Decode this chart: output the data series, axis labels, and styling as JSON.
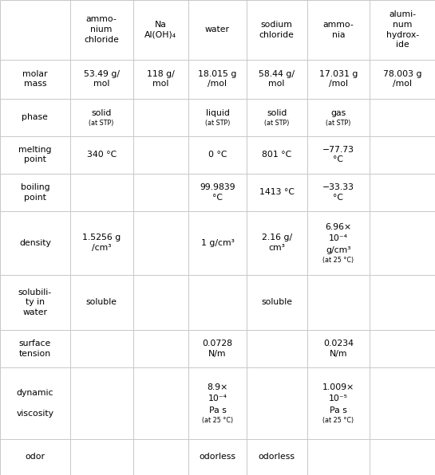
{
  "col_headers": [
    "",
    "ammo-\nnium\nchloride",
    "Na\nAl(OH)₄",
    "water",
    "sodium\nchloride",
    "ammo-\nnia",
    "alumi-\nnum\nhydrox-\nide"
  ],
  "rows": [
    {
      "label": "molar\nmass",
      "cells": [
        "53.49 g/\nmol",
        "118 g/\nmol",
        "18.015 g\n/mol",
        "58.44 g/\nmol",
        "17.031 g\n/mol",
        "78.003 g\n/mol"
      ]
    },
    {
      "label": "phase",
      "cells": [
        "solid\n(at STP)",
        "",
        "liquid\n(at STP)",
        "solid\n(at STP)",
        "gas\n(at STP)",
        ""
      ]
    },
    {
      "label": "melting\npoint",
      "cells": [
        "340 °C",
        "",
        "0 °C",
        "801 °C",
        "−77.73\n°C",
        ""
      ]
    },
    {
      "label": "boiling\npoint",
      "cells": [
        "",
        "",
        "99.9839\n°C",
        "1413 °C",
        "−33.33\n°C",
        ""
      ]
    },
    {
      "label": "density",
      "cells": [
        "1.5256 g\n/cm³",
        "",
        "1 g/cm³",
        "2.16 g/\ncm³",
        "6.96×\n10⁻⁴\ng/cm³\n(at 25 °C)",
        ""
      ]
    },
    {
      "label": "solubili-\nty in\nwater",
      "cells": [
        "soluble",
        "",
        "",
        "soluble",
        "",
        ""
      ]
    },
    {
      "label": "surface\ntension",
      "cells": [
        "",
        "",
        "0.0728\nN/m",
        "",
        "0.0234\nN/m",
        ""
      ]
    },
    {
      "label": "dynamic\n\nviscosity",
      "cells": [
        "",
        "",
        "8.9×\n10⁻⁴\nPa s\n(at 25 °C)",
        "",
        "1.009×\n10⁻⁵\nPa s\n(at 25 °C)",
        ""
      ]
    },
    {
      "label": "odor",
      "cells": [
        "",
        "",
        "odorless",
        "odorless",
        "",
        ""
      ]
    }
  ],
  "bg_color": "#ffffff",
  "line_color": "#c8c8c8",
  "text_color": "#000000",
  "col_widths_rel": [
    1.45,
    1.3,
    1.15,
    1.2,
    1.25,
    1.3,
    1.35
  ],
  "row_heights_rel": [
    1.9,
    1.25,
    1.2,
    1.2,
    1.2,
    2.05,
    1.75,
    1.2,
    2.3,
    1.15
  ],
  "main_fontsize": 7.8,
  "small_fontsize": 5.8,
  "fig_width": 5.45,
  "fig_height": 5.96,
  "dpi": 100
}
